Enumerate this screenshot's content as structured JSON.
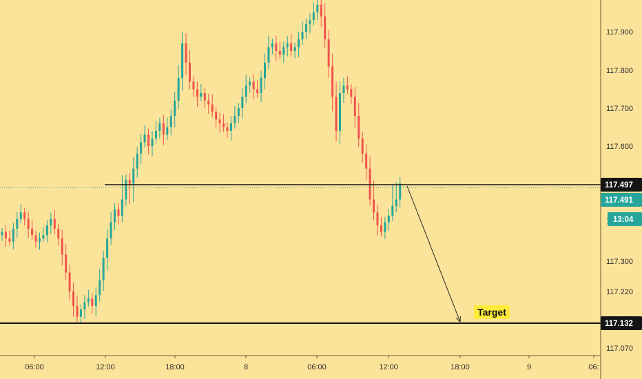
{
  "chart_data": {
    "type": "candlestick",
    "instrument_note": "",
    "x_axis": {
      "tick_labels": [
        "06:00",
        "12:00",
        "18:00",
        "8",
        "06:00",
        "12:00",
        "18:00",
        "9",
        "06:"
      ]
    },
    "y_axis": {
      "tick_labels": [
        "117.900",
        "117.800",
        "117.700",
        "117.600",
        "117.300",
        "117.220",
        "117.070"
      ],
      "range": [
        117.04,
        118.02
      ],
      "scale": "piecewise"
    },
    "price_labels": [
      {
        "label": "117.497",
        "kind": "resistance",
        "color": "#141414"
      },
      {
        "label": "117.491",
        "kind": "last-price",
        "color": "#26a69a"
      },
      {
        "label": "13:04",
        "kind": "countdown",
        "color": "#26a69a"
      },
      {
        "label": "117.132",
        "kind": "target",
        "color": "#141414"
      }
    ],
    "annotations": [
      {
        "text": "Target",
        "type": "label",
        "bg": "#ffeb3b"
      }
    ],
    "colors": {
      "background": "#fce39a",
      "up": "#26a69a",
      "down": "#ef5350",
      "line": "#141414",
      "dotted": "#26a69a"
    },
    "series": [
      {
        "type": "ohlc-close",
        "values": [
          117.39,
          117.37,
          117.36,
          117.4,
          117.43,
          117.45,
          117.43,
          117.4,
          117.38,
          117.36,
          117.37,
          117.38,
          117.41,
          117.43,
          117.4,
          117.37,
          117.32,
          117.27,
          117.22,
          117.18,
          117.15,
          117.17,
          117.19,
          117.2,
          117.18,
          117.21,
          117.25,
          117.31,
          117.37,
          117.42,
          117.46,
          117.44,
          117.49,
          117.51,
          117.5,
          117.54,
          117.58,
          117.61,
          117.63,
          117.6,
          117.62,
          117.64,
          117.66,
          117.63,
          117.65,
          117.68,
          117.72,
          117.78,
          117.87,
          117.82,
          117.77,
          117.75,
          117.73,
          117.74,
          117.72,
          117.71,
          117.69,
          117.67,
          117.66,
          117.65,
          117.64,
          117.66,
          117.68,
          117.7,
          117.73,
          117.76,
          117.77,
          117.75,
          117.74,
          117.78,
          117.82,
          117.86,
          117.87,
          117.85,
          117.84,
          117.86,
          117.87,
          117.85,
          117.86,
          117.88,
          117.9,
          117.92,
          117.93,
          117.95,
          117.97,
          117.94,
          117.88,
          117.81,
          117.73,
          117.64,
          117.74,
          117.76,
          117.75,
          117.73,
          117.68,
          117.62,
          117.58,
          117.54,
          117.49,
          117.45,
          117.41,
          117.39,
          117.42,
          117.44,
          117.47,
          117.49,
          117.5
        ]
      }
    ]
  }
}
